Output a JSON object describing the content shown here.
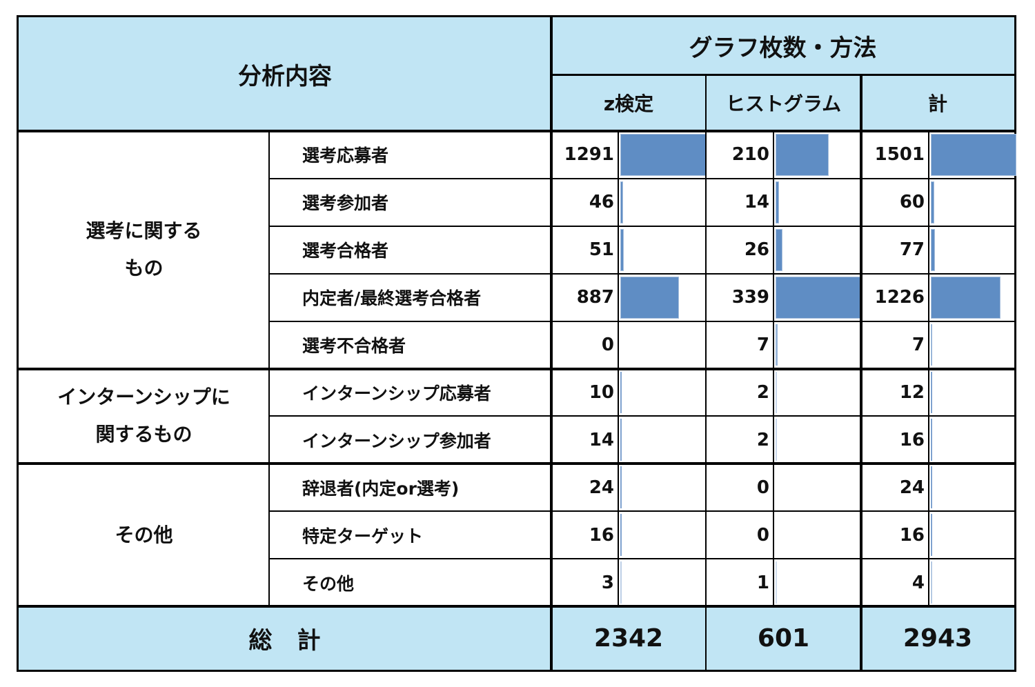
{
  "header": {
    "analysis_label": "分析内容",
    "graphs_label": "グラフ枚数・方法",
    "columns": [
      "z検定",
      "ヒストグラム",
      "計"
    ]
  },
  "groups": [
    {
      "label_lines": [
        "選考に関する",
        "もの"
      ],
      "rows": [
        0,
        1,
        2,
        3,
        4
      ]
    },
    {
      "label_lines": [
        "インターンシップに",
        "関するもの"
      ],
      "rows": [
        5,
        6
      ]
    },
    {
      "label_lines": [
        "その他"
      ],
      "rows": [
        7,
        8,
        9
      ]
    }
  ],
  "rows": [
    {
      "label": "選考応募者",
      "z": "1291",
      "hist": "210",
      "total": "1501"
    },
    {
      "label": "選考参加者",
      "z": "46",
      "hist": "14",
      "total": "60"
    },
    {
      "label": "選考合格者",
      "z": "51",
      "hist": "26",
      "total": "77"
    },
    {
      "label": "内定者/最終選考合格者",
      "z": "887",
      "hist": "339",
      "total": "1226"
    },
    {
      "label": "選考不合格者",
      "z": "0",
      "hist": "7",
      "total": "7"
    },
    {
      "label": "インターンシップ応募者",
      "z": "10",
      "hist": "2",
      "total": "12"
    },
    {
      "label": "インターンシップ参加者",
      "z": "14",
      "hist": "2",
      "total": "16"
    },
    {
      "label": "辞退者(内定or選考)",
      "z": "24",
      "hist": "0",
      "total": "24"
    },
    {
      "label": "特定ターゲット",
      "z": "16",
      "hist": "0",
      "total": "16"
    },
    {
      "label": "その他",
      "z": "3",
      "hist": "1",
      "total": "4"
    }
  ],
  "footer": {
    "label": "総　計",
    "z_total": "2342",
    "hist_total": "601",
    "grand_total": "2943"
  },
  "colors": {
    "header_bg": "#c1e5f4",
    "bar_fill": "#5f8dc4",
    "border": "#000000"
  },
  "chart_data": {
    "type": "table",
    "title": "グラフ枚数・方法",
    "columns": [
      "分析内容 (カテゴリ)",
      "分析内容 (項目)",
      "z検定",
      "ヒストグラム",
      "計"
    ],
    "categories": [
      "選考応募者",
      "選考参加者",
      "選考合格者",
      "内定者/最終選考合格者",
      "選考不合格者",
      "インターンシップ応募者",
      "インターンシップ参加者",
      "辞退者(内定or選考)",
      "特定ターゲット",
      "その他"
    ],
    "groups": {
      "選考に関するもの": [
        "選考応募者",
        "選考参加者",
        "選考合格者",
        "内定者/最終選考合格者",
        "選考不合格者"
      ],
      "インターンシップに関するもの": [
        "インターンシップ応募者",
        "インターンシップ参加者"
      ],
      "その他": [
        "辞退者(内定or選考)",
        "特定ターゲット",
        "その他"
      ]
    },
    "series": [
      {
        "name": "z検定",
        "values": [
          1291,
          46,
          51,
          887,
          0,
          10,
          14,
          24,
          16,
          3
        ]
      },
      {
        "name": "ヒストグラム",
        "values": [
          210,
          14,
          26,
          339,
          7,
          2,
          2,
          0,
          0,
          1
        ]
      },
      {
        "name": "計",
        "values": [
          1501,
          60,
          77,
          1226,
          7,
          12,
          16,
          24,
          16,
          4
        ]
      }
    ],
    "totals": {
      "z検定": 2342,
      "ヒストグラム": 601,
      "計": 2943
    },
    "data_bars": true
  }
}
